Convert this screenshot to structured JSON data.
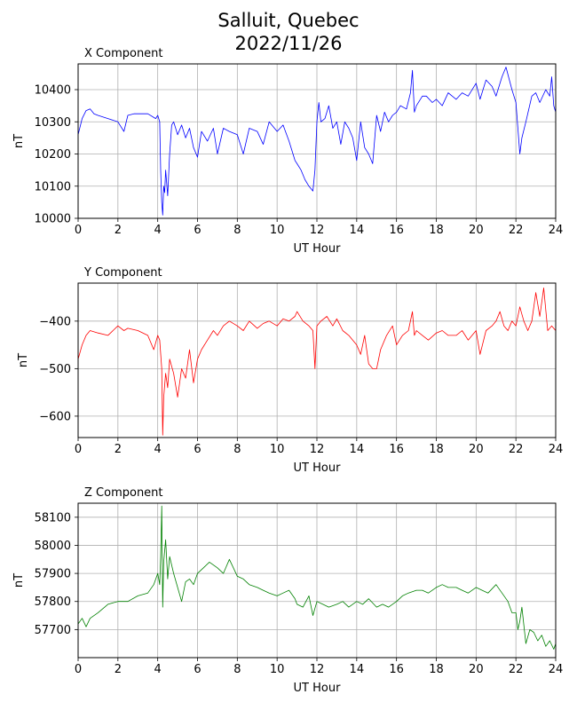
{
  "figure": {
    "title_line1": "Salluit, Quebec",
    "title_line2": "2022/11/26"
  },
  "chart_data": [
    {
      "type": "line",
      "title": "X Component",
      "xlabel": "UT Hour",
      "ylabel": "nT",
      "xlim": [
        0,
        24
      ],
      "ylim": [
        10000,
        10480
      ],
      "xticks": [
        0,
        2,
        4,
        6,
        8,
        10,
        12,
        14,
        16,
        18,
        20,
        22,
        24
      ],
      "yticks": [
        10000,
        10100,
        10200,
        10300,
        10400
      ],
      "grid": true,
      "color": "#0000ff",
      "series": [
        {
          "x": [
            0,
            0.2,
            0.4,
            0.6,
            0.8,
            1.0,
            1.5,
            2.0,
            2.3,
            2.5,
            2.8,
            3.0,
            3.5,
            3.9,
            4.0,
            4.1,
            4.15,
            4.2,
            4.25,
            4.3,
            4.35,
            4.4,
            4.5,
            4.6,
            4.7,
            4.8,
            5.0,
            5.2,
            5.4,
            5.6,
            5.8,
            6.0,
            6.2,
            6.5,
            6.8,
            7.0,
            7.3,
            7.6,
            8.0,
            8.3,
            8.6,
            9.0,
            9.3,
            9.6,
            10.0,
            10.3,
            10.6,
            10.9,
            11.0,
            11.2,
            11.4,
            11.6,
            11.8,
            11.9,
            12.0,
            12.1,
            12.2,
            12.4,
            12.6,
            12.8,
            13.0,
            13.2,
            13.4,
            13.6,
            13.8,
            14.0,
            14.2,
            14.4,
            14.6,
            14.8,
            15.0,
            15.2,
            15.4,
            15.6,
            15.8,
            16.0,
            16.2,
            16.5,
            16.7,
            16.8,
            16.9,
            17.0,
            17.3,
            17.5,
            17.8,
            18.0,
            18.3,
            18.6,
            19.0,
            19.3,
            19.6,
            20.0,
            20.2,
            20.5,
            20.8,
            21.0,
            21.3,
            21.5,
            21.8,
            22.0,
            22.2,
            22.3,
            22.5,
            22.8,
            23.0,
            23.2,
            23.5,
            23.7,
            23.8,
            23.9,
            24.0
          ],
          "values": [
            10260,
            10310,
            10335,
            10340,
            10325,
            10320,
            10310,
            10300,
            10270,
            10320,
            10325,
            10325,
            10325,
            10310,
            10320,
            10300,
            10150,
            10050,
            10010,
            10100,
            10080,
            10150,
            10070,
            10200,
            10290,
            10300,
            10260,
            10290,
            10250,
            10280,
            10220,
            10190,
            10270,
            10240,
            10280,
            10200,
            10280,
            10270,
            10260,
            10200,
            10280,
            10270,
            10230,
            10300,
            10270,
            10290,
            10240,
            10180,
            10170,
            10150,
            10120,
            10100,
            10085,
            10150,
            10300,
            10360,
            10300,
            10310,
            10350,
            10280,
            10300,
            10230,
            10300,
            10280,
            10250,
            10180,
            10300,
            10220,
            10200,
            10170,
            10320,
            10270,
            10330,
            10300,
            10320,
            10330,
            10350,
            10340,
            10390,
            10460,
            10330,
            10350,
            10380,
            10380,
            10360,
            10370,
            10350,
            10390,
            10370,
            10390,
            10380,
            10420,
            10370,
            10430,
            10410,
            10380,
            10440,
            10470,
            10400,
            10360,
            10200,
            10250,
            10300,
            10380,
            10390,
            10360,
            10400,
            10380,
            10440,
            10350,
            10330
          ]
        }
      ]
    },
    {
      "type": "line",
      "title": "Y Component",
      "xlabel": "UT Hour",
      "ylabel": "nT",
      "xlim": [
        0,
        24
      ],
      "ylim": [
        -645,
        -320
      ],
      "xticks": [
        0,
        2,
        4,
        6,
        8,
        10,
        12,
        14,
        16,
        18,
        20,
        22,
        24
      ],
      "yticks": [
        -600,
        -500,
        -400
      ],
      "grid": true,
      "color": "#ff0000",
      "series": [
        {
          "x": [
            0,
            0.2,
            0.4,
            0.6,
            1.0,
            1.5,
            2.0,
            2.3,
            2.5,
            3.0,
            3.5,
            3.8,
            4.0,
            4.1,
            4.2,
            4.25,
            4.3,
            4.4,
            4.5,
            4.6,
            4.8,
            5.0,
            5.2,
            5.4,
            5.6,
            5.8,
            6.0,
            6.2,
            6.5,
            6.8,
            7.0,
            7.3,
            7.6,
            8.0,
            8.3,
            8.6,
            9.0,
            9.3,
            9.6,
            10.0,
            10.3,
            10.6,
            10.9,
            11.0,
            11.3,
            11.6,
            11.8,
            11.9,
            12.0,
            12.2,
            12.5,
            12.8,
            13.0,
            13.3,
            13.6,
            14.0,
            14.2,
            14.4,
            14.6,
            14.8,
            15.0,
            15.2,
            15.5,
            15.8,
            16.0,
            16.3,
            16.6,
            16.8,
            16.9,
            17.0,
            17.3,
            17.6,
            18.0,
            18.3,
            18.6,
            19.0,
            19.3,
            19.6,
            20.0,
            20.2,
            20.5,
            20.8,
            21.0,
            21.2,
            21.4,
            21.6,
            21.8,
            22.0,
            22.2,
            22.4,
            22.6,
            22.8,
            23.0,
            23.2,
            23.4,
            23.6,
            23.8,
            24.0
          ],
          "values": [
            -480,
            -450,
            -430,
            -420,
            -425,
            -430,
            -410,
            -420,
            -415,
            -420,
            -430,
            -460,
            -430,
            -440,
            -500,
            -640,
            -560,
            -510,
            -540,
            -480,
            -510,
            -560,
            -500,
            -520,
            -460,
            -530,
            -480,
            -460,
            -440,
            -420,
            -430,
            -410,
            -400,
            -410,
            -420,
            -400,
            -415,
            -405,
            -400,
            -410,
            -395,
            -400,
            -390,
            -380,
            -400,
            -410,
            -420,
            -500,
            -410,
            -400,
            -390,
            -410,
            -395,
            -420,
            -430,
            -450,
            -470,
            -430,
            -490,
            -500,
            -500,
            -460,
            -430,
            -410,
            -450,
            -430,
            -420,
            -380,
            -430,
            -420,
            -430,
            -440,
            -425,
            -420,
            -430,
            -430,
            -420,
            -440,
            -420,
            -470,
            -420,
            -410,
            -400,
            -380,
            -410,
            -420,
            -400,
            -410,
            -370,
            -400,
            -420,
            -400,
            -340,
            -390,
            -330,
            -420,
            -410,
            -420
          ]
        }
      ]
    },
    {
      "type": "line",
      "title": "Z Component",
      "xlabel": "UT Hour",
      "ylabel": "nT",
      "xlim": [
        0,
        24
      ],
      "ylim": [
        57600,
        58150
      ],
      "xticks": [
        0,
        2,
        4,
        6,
        8,
        10,
        12,
        14,
        16,
        18,
        20,
        22,
        24
      ],
      "yticks": [
        57700,
        57800,
        57900,
        58000,
        58100
      ],
      "grid": true,
      "color": "#008000",
      "series": [
        {
          "x": [
            0,
            0.2,
            0.4,
            0.6,
            1.0,
            1.5,
            2.0,
            2.5,
            3.0,
            3.5,
            3.8,
            4.0,
            4.1,
            4.15,
            4.2,
            4.25,
            4.3,
            4.4,
            4.5,
            4.6,
            4.8,
            5.0,
            5.2,
            5.4,
            5.6,
            5.8,
            6.0,
            6.3,
            6.6,
            7.0,
            7.3,
            7.6,
            7.8,
            8.0,
            8.3,
            8.6,
            9.0,
            9.3,
            9.6,
            10.0,
            10.3,
            10.6,
            10.9,
            11.0,
            11.3,
            11.6,
            11.8,
            12.0,
            12.3,
            12.6,
            13.0,
            13.3,
            13.6,
            14.0,
            14.3,
            14.6,
            15.0,
            15.3,
            15.6,
            16.0,
            16.3,
            16.6,
            17.0,
            17.3,
            17.6,
            18.0,
            18.3,
            18.6,
            19.0,
            19.3,
            19.6,
            20.0,
            20.3,
            20.6,
            21.0,
            21.3,
            21.6,
            21.8,
            22.0,
            22.1,
            22.2,
            22.3,
            22.5,
            22.7,
            22.9,
            23.1,
            23.3,
            23.5,
            23.7,
            23.9,
            24.0
          ],
          "values": [
            57720,
            57740,
            57710,
            57740,
            57760,
            57790,
            57800,
            57800,
            57820,
            57830,
            57860,
            57900,
            57860,
            57960,
            58140,
            57780,
            57940,
            58020,
            57880,
            57960,
            57900,
            57850,
            57800,
            57870,
            57880,
            57860,
            57900,
            57920,
            57940,
            57920,
            57900,
            57950,
            57920,
            57890,
            57880,
            57860,
            57850,
            57840,
            57830,
            57820,
            57830,
            57840,
            57810,
            57790,
            57780,
            57820,
            57750,
            57800,
            57790,
            57780,
            57790,
            57800,
            57780,
            57800,
            57790,
            57810,
            57780,
            57790,
            57780,
            57800,
            57820,
            57830,
            57840,
            57840,
            57830,
            57850,
            57860,
            57850,
            57850,
            57840,
            57830,
            57850,
            57840,
            57830,
            57860,
            57830,
            57800,
            57760,
            57760,
            57700,
            57730,
            57780,
            57650,
            57700,
            57690,
            57660,
            57680,
            57640,
            57660,
            57630,
            57650
          ]
        }
      ]
    }
  ]
}
